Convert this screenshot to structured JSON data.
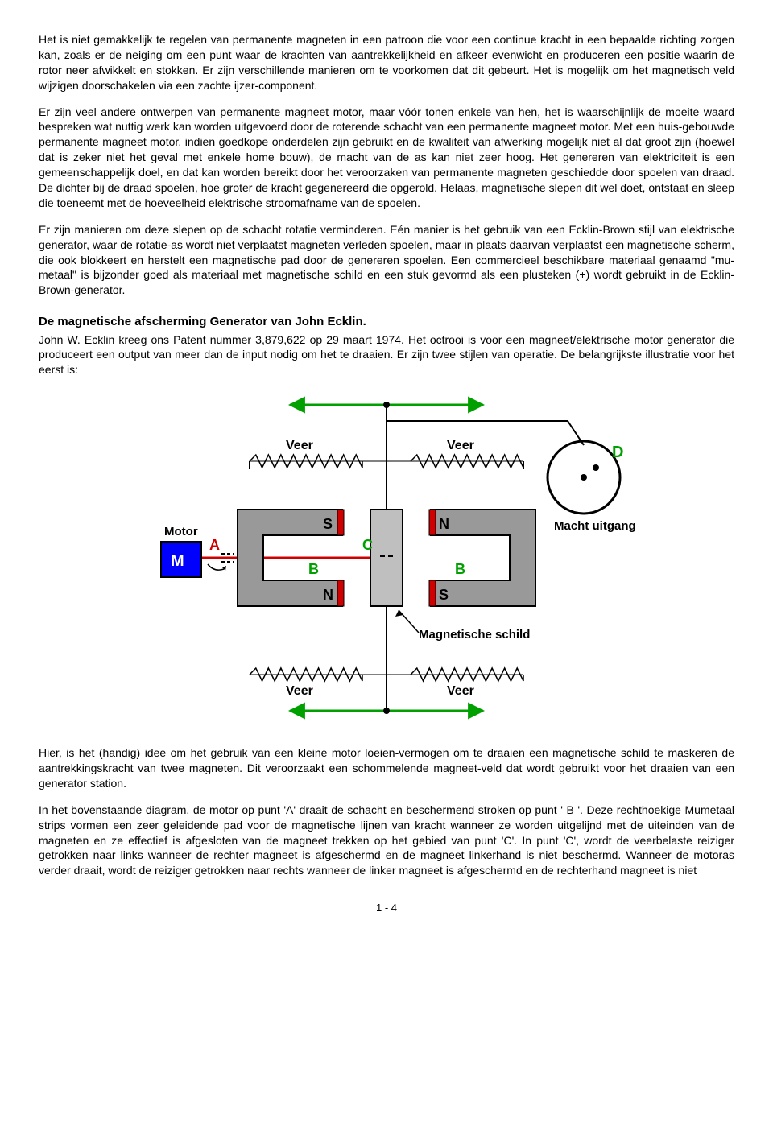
{
  "para1": "Het is niet gemakkelijk te regelen van permanente magneten in een patroon die voor een continue kracht in een bepaalde richting zorgen kan, zoals er de neiging om een punt waar de krachten van aantrekkelijkheid en afkeer evenwicht en produceren een positie waarin de rotor neer afwikkelt en stokken. Er zijn verschillende manieren om te voorkomen dat dit gebeurt. Het is mogelijk om het magnetisch veld wijzigen doorschakelen via een zachte ijzer-component.",
  "para2": "Er zijn veel andere ontwerpen van permanente magneet motor, maar vóór tonen enkele van hen, het is waarschijnlijk de moeite waard bespreken wat nuttig werk kan worden uitgevoerd door de roterende schacht van een permanente magneet motor. Met een huis-gebouwde permanente magneet motor, indien goedkope onderdelen zijn gebruikt en de kwaliteit van afwerking mogelijk niet al dat groot zijn (hoewel dat is zeker niet het geval met enkele home bouw), de macht van de as kan niet zeer hoog. Het genereren van elektriciteit is een gemeenschappelijk doel, en dat kan worden bereikt door het veroorzaken van permanente magneten geschiedde door spoelen van draad. De dichter bij de draad spoelen, hoe groter de kracht gegenereerd die opgerold. Helaas, magnetische slepen dit wel doet, ontstaat en sleep die toeneemt met de hoeveelheid elektrische stroomafname van de spoelen.",
  "para3": "Er zijn manieren om deze slepen op de schacht rotatie verminderen. Eén manier is het gebruik van een Ecklin-Brown stijl van elektrische generator, waar de rotatie-as wordt niet verplaatst magneten verleden spoelen, maar in plaats daarvan verplaatst een magnetische scherm, die ook blokkeert en herstelt een magnetische pad door de genereren spoelen. Een commercieel beschikbare materiaal genaamd \"mu-metaal\" is bijzonder goed als materiaal met magnetische schild en een stuk gevormd als een plusteken (+) wordt gebruikt in de Ecklin-Brown-generator.",
  "heading": "De magnetische afscherming Generator van John Ecklin.",
  "para4": "John W. Ecklin kreeg ons Patent nummer 3,879,622 op 29 maart 1974. Het octrooi is voor een magneet/elektrische motor generator die produceert een output van meer dan de input nodig om het te draaien. Er zijn twee stijlen van operatie. De belangrijkste illustratie voor het eerst is:",
  "para5": "Hier, is het (handig) idee om het gebruik van een kleine motor loeien-vermogen om te draaien een magnetische schild te maskeren de aantrekkingskracht van twee magneten. Dit veroorzaakt een schommelende magneet-veld dat wordt gebruikt voor het draaien van een generator station.",
  "para6": "In het bovenstaande diagram, de motor op punt 'A' draait de schacht en beschermend stroken op punt ' B '. Deze rechthoekige Mumetaal strips vormen een zeer geleidende pad voor de magnetische lijnen van kracht wanneer ze worden uitgelijnd met de uiteinden van de magneten en ze effectief is afgesloten van de magneet trekken op het gebied van punt 'C'. In punt 'C', wordt de veerbelaste reiziger getrokken naar links wanneer de rechter magneet is afgeschermd en de magneet linkerhand is niet beschermd. Wanneer de motoras verder draait, wordt de reiziger getrokken naar rechts wanneer de linker magneet is afgeschermd en de rechterhand magneet is niet",
  "pageNumber": "1 - 4",
  "diagram": {
    "labels": {
      "veer": "Veer",
      "motor": "Motor",
      "macht": "Macht uitgang",
      "schild": "Magnetische schild",
      "M": "M",
      "A": "A",
      "B": "B",
      "C": "C",
      "D": "D",
      "S": "S",
      "N": "N"
    },
    "colors": {
      "motor_fill": "#0000ff",
      "magnet_body": "#999999",
      "magnet_stroke": "#000000",
      "pole_red": "#d00000",
      "shield_gray": "#bfbfbf",
      "arrow_green": "#00a000",
      "flywheel_stroke": "#000000",
      "flywheel_fill": "#ffffff",
      "text_green": "#00a000",
      "text_red": "#d00000",
      "text_black": "#000000",
      "spring": "#000000"
    }
  }
}
